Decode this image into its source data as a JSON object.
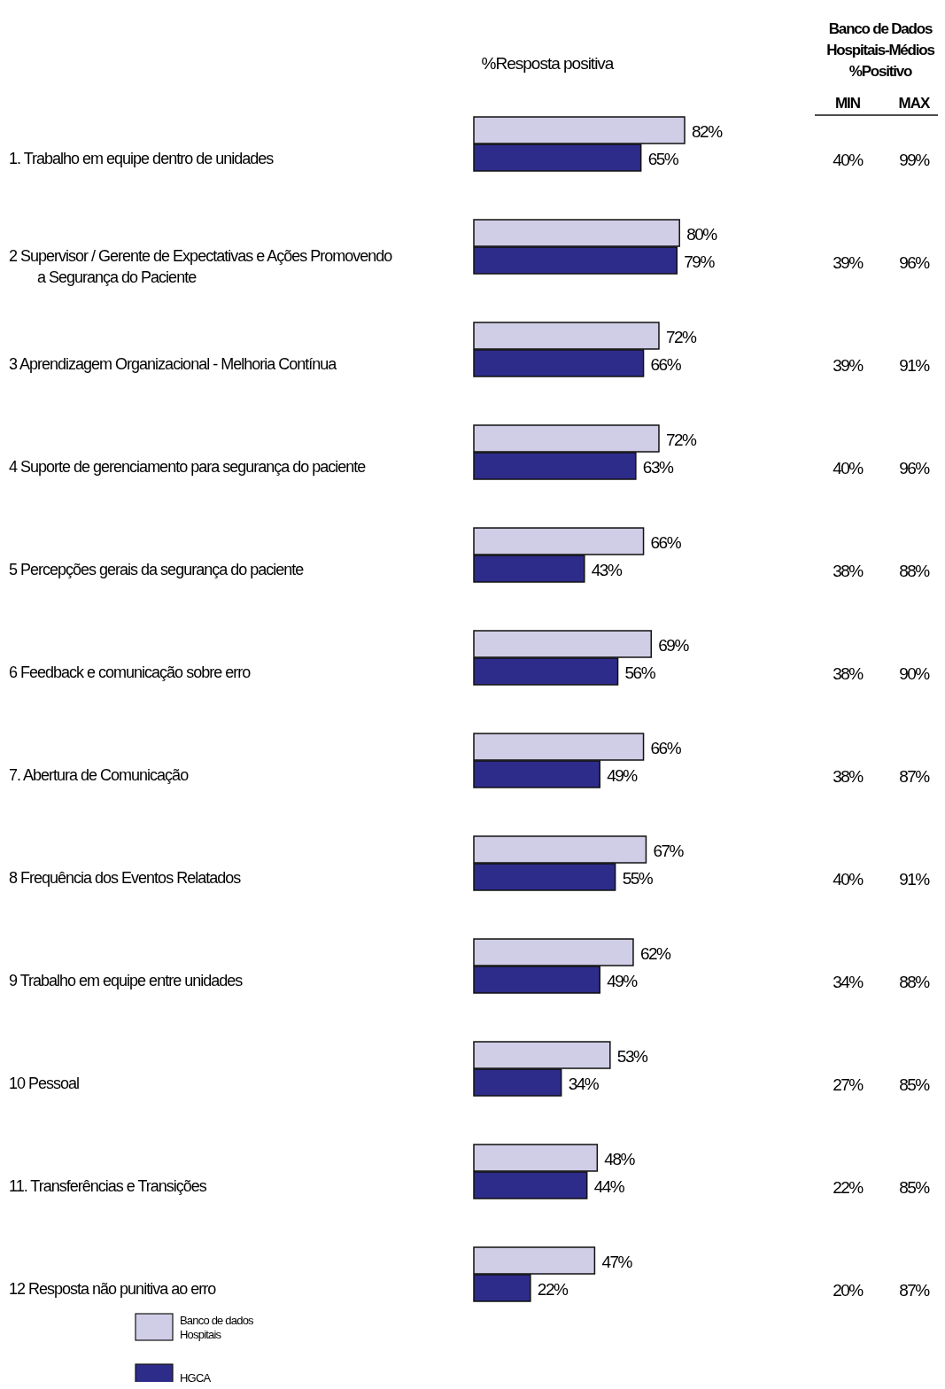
{
  "chart_data": [
    {
      "type": "bar",
      "orientation": "horizontal",
      "title": "%Resposta positiva",
      "categories": [
        "1. Trabalho em equipe dentro de unidades",
        "2 Supervisor / Gerente de Expectativas e Ações Promovendo a Segurança do Paciente",
        "3 Aprendizagem Organizacional - Melhoria Contínua",
        "4 Suporte de gerenciamento para segurança do paciente",
        "5 Percepções gerais da segurança do paciente",
        "6 Feedback e comunicação sobre erro",
        "7. Abertura de Comunicação",
        "8 Frequência dos Eventos Relatados",
        "9 Trabalho em equipe entre unidades",
        "10 Pessoal",
        "11. Transferências e Transições",
        "12 Resposta não punitiva ao erro"
      ],
      "series": [
        {
          "name": "Banco de dados Hospitais",
          "color": "#d0cde6",
          "values": [
            82,
            80,
            72,
            72,
            66,
            69,
            66,
            67,
            62,
            53,
            48,
            47
          ],
          "value_labels": [
            "82%",
            "80%",
            "72%",
            "72%",
            "66%",
            "69%",
            "66%",
            "67%",
            "62%",
            "53%",
            "48%",
            "47%"
          ]
        },
        {
          "name": "HGCA",
          "color": "#2e2c8a",
          "values": [
            65,
            79,
            66,
            63,
            43,
            56,
            49,
            55,
            49,
            34,
            44,
            22
          ],
          "value_labels": [
            "65%",
            "79%",
            "66%",
            "63%",
            "43%",
            "56%",
            "49%",
            "55%",
            "49%",
            "34%",
            "44%",
            "22%"
          ]
        }
      ],
      "legend": "bottom left"
    },
    {
      "type": "other",
      "title": "Banco de Dados Hospitais-Médios %Positivo",
      "categories": [
        "MIN",
        "MAX"
      ],
      "annotations": [
        "40%",
        "99%",
        "39%",
        "96%",
        "39%",
        "91%",
        "40%",
        "96%",
        "38%",
        "88%",
        "38%",
        "90%",
        "38%",
        "87%",
        "40%",
        "91%",
        "34%",
        "88%",
        "27%",
        "85%",
        "22%",
        "85%",
        "20%",
        "87%"
      ]
    }
  ]
}
